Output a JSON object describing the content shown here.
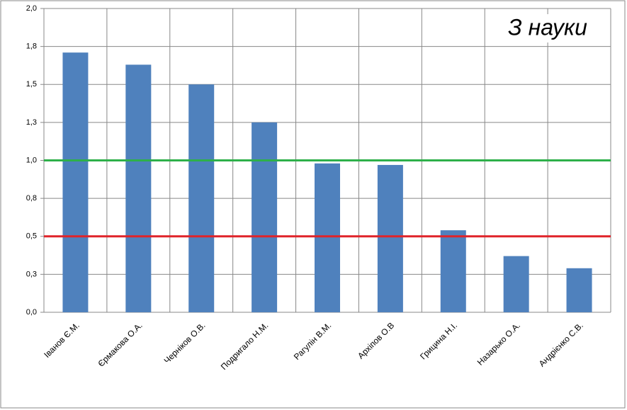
{
  "chart_data": {
    "type": "bar",
    "annotation": "З науки",
    "categories": [
      "Іванов Є.М.",
      "Єрмакова О.А.",
      "Черніков О.В.",
      "Подригало Н.М.",
      "Рагулін В.М.",
      "Архіпов О.В",
      "Грицина Н.І.",
      "Назарько О.А.",
      "Андрієнко С.В."
    ],
    "values": [
      1.71,
      1.63,
      1.5,
      1.25,
      0.98,
      0.97,
      0.54,
      0.37,
      0.29
    ],
    "color": "#4f81bd",
    "ylim": [
      0,
      2
    ],
    "yticks": [
      {
        "value": 0,
        "label": "0,0"
      },
      {
        "value": 0.25,
        "label": "0,3"
      },
      {
        "value": 0.5,
        "label": "0,5"
      },
      {
        "value": 0.75,
        "label": "0,8"
      },
      {
        "value": 1,
        "label": "1,0"
      },
      {
        "value": 1.25,
        "label": "1,3"
      },
      {
        "value": 1.5,
        "label": "1,5"
      },
      {
        "value": 1.75,
        "label": "1,8"
      },
      {
        "value": 2,
        "label": "2,0"
      }
    ],
    "grid": true,
    "reference_lines": [
      {
        "value": 1,
        "color": "#2eb04a"
      },
      {
        "value": 0.5,
        "color": "#e0242a"
      }
    ]
  }
}
